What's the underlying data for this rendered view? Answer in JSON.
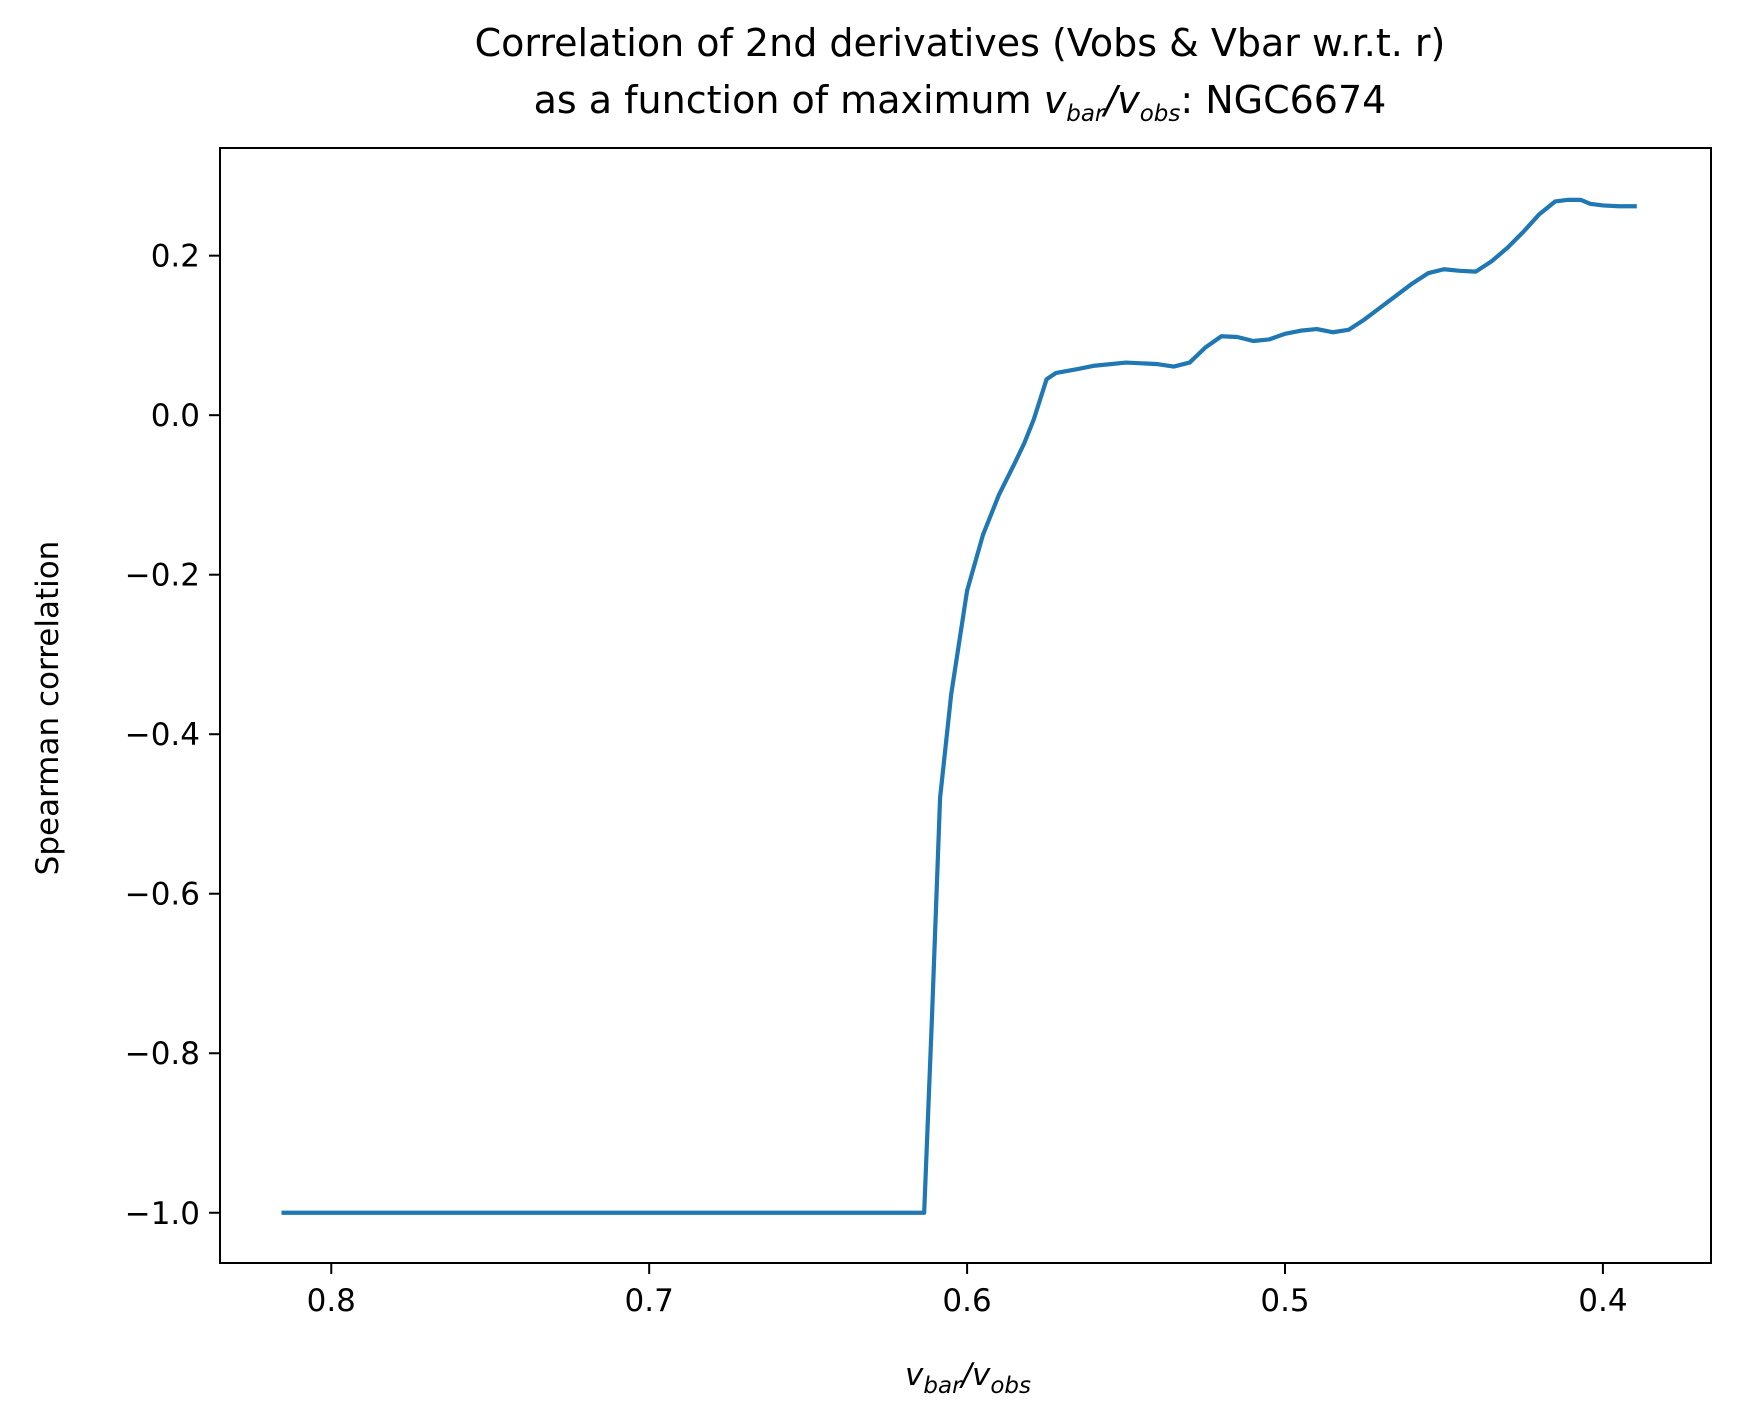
{
  "chart_data": {
    "type": "line",
    "title": {
      "line1": "Correlation of 2nd derivatives (Vobs & Vbar w.r.t. r)",
      "line2_prefix": "as a function of maximum ",
      "line2_suffix": ": NGC6674"
    },
    "xlabel": "v_bar/v_obs",
    "ylabel": "Spearman correlation",
    "x_axis_inverted": true,
    "xlim": [
      0.835,
      0.366
    ],
    "ylim": [
      -1.063,
      0.335
    ],
    "xticks": [
      0.8,
      0.7,
      0.6,
      0.5,
      0.4
    ],
    "xtick_labels": [
      "0.8",
      "0.7",
      "0.6",
      "0.5",
      "0.4"
    ],
    "yticks": [
      0.2,
      0.0,
      -0.2,
      -0.4,
      -0.6,
      -0.8,
      -1.0
    ],
    "ytick_labels": [
      "0.2",
      "0.0",
      "−0.2",
      "−0.4",
      "−0.6",
      "−0.8",
      "−1.0"
    ],
    "grid": false,
    "series": [
      {
        "color": "#1f77b4",
        "x": [
          0.815,
          0.75,
          0.7,
          0.65,
          0.62,
          0.6135,
          0.611,
          0.6085,
          0.605,
          0.6,
          0.595,
          0.59,
          0.585,
          0.582,
          0.579,
          0.577,
          0.575,
          0.572,
          0.565,
          0.56,
          0.55,
          0.54,
          0.535,
          0.53,
          0.525,
          0.52,
          0.515,
          0.51,
          0.505,
          0.5,
          0.495,
          0.49,
          0.485,
          0.48,
          0.475,
          0.47,
          0.465,
          0.46,
          0.455,
          0.45,
          0.445,
          0.44,
          0.435,
          0.43,
          0.425,
          0.42,
          0.415,
          0.411,
          0.409,
          0.407,
          0.404,
          0.4,
          0.395,
          0.39
        ],
        "y": [
          -1.0,
          -1.0,
          -1.0,
          -1.0,
          -1.0,
          -1.0,
          -0.75,
          -0.48,
          -0.35,
          -0.22,
          -0.15,
          -0.1,
          -0.06,
          -0.035,
          -0.005,
          0.02,
          0.045,
          0.053,
          0.058,
          0.062,
          0.066,
          0.064,
          0.061,
          0.066,
          0.085,
          0.099,
          0.098,
          0.093,
          0.095,
          0.102,
          0.106,
          0.108,
          0.104,
          0.107,
          0.12,
          0.135,
          0.15,
          0.165,
          0.178,
          0.183,
          0.181,
          0.18,
          0.193,
          0.21,
          0.23,
          0.252,
          0.268,
          0.27,
          0.27,
          0.27,
          0.265,
          0.263,
          0.262,
          0.262
        ]
      }
    ]
  }
}
